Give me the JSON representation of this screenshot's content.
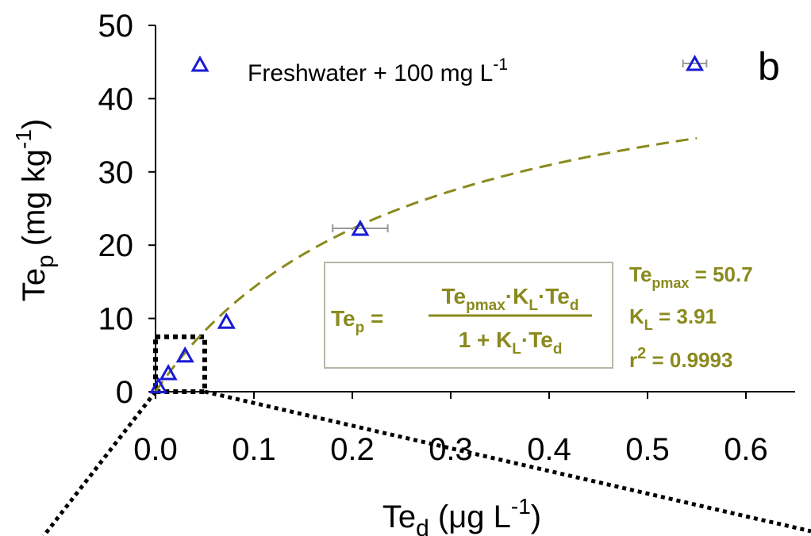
{
  "chart_data": {
    "type": "scatter",
    "panel_label": "b",
    "xlabel": {
      "base": "Te",
      "sub": "d",
      "unit_open": " (μg L",
      "unit_sup": "-1",
      "unit_close": ")"
    },
    "ylabel": {
      "base": "Te",
      "sub": "p",
      "unit_open": " (mg kg",
      "unit_sup": "-1",
      "unit_close": ")"
    },
    "xlim": [
      0,
      0.65
    ],
    "ylim": [
      0,
      50
    ],
    "x_ticks": [
      "0.0",
      "0.1",
      "0.2",
      "0.3",
      "0.4",
      "0.5",
      "0.6"
    ],
    "y_ticks": [
      "0",
      "10",
      "20",
      "30",
      "40",
      "50"
    ],
    "x_tick_values": [
      0,
      0.1,
      0.2,
      0.3,
      0.4,
      0.5,
      0.6
    ],
    "y_tick_values": [
      0,
      10,
      20,
      30,
      40,
      50
    ],
    "series": [
      {
        "name": "Freshwater + 100 mg L",
        "name_sup": "-1",
        "marker": "open-triangle",
        "color": "#1a1ad6",
        "points": [
          {
            "x": 0.003,
            "y": 0.8
          },
          {
            "x": 0.013,
            "y": 2.6
          },
          {
            "x": 0.03,
            "y": 5.0
          },
          {
            "x": 0.072,
            "y": 9.6
          },
          {
            "x": 0.208,
            "y": 22.3,
            "xerr": 0.028
          },
          {
            "x": 0.548,
            "y": 44.8,
            "xerr": 0.012
          }
        ]
      }
    ],
    "fit": {
      "style": "dashed",
      "color": "#8a8a1e",
      "tepmax": 50.7,
      "kl": 3.91,
      "x_range": [
        0,
        0.55
      ]
    },
    "equation": {
      "lhs_base": "Te",
      "lhs_sub": "p",
      "equals": " =",
      "num_a": "Te",
      "num_a_sub": "pmax",
      "num_dot1": "·K",
      "num_k_sub": "L",
      "num_dot2": "·Te",
      "num_d_sub": "d",
      "den_a": "1 + K",
      "den_k_sub": "L",
      "den_dot": "·Te",
      "den_d_sub": "d"
    },
    "params": {
      "tepmax_base": "Te",
      "tepmax_sub": "pmax",
      "tepmax_val": " = 50.7",
      "kl_base": "K",
      "kl_sub": "L",
      "kl_val": " = 3.91",
      "r2_base": "r",
      "r2_sup": "2",
      "r2_val": " = 0.9993"
    }
  }
}
